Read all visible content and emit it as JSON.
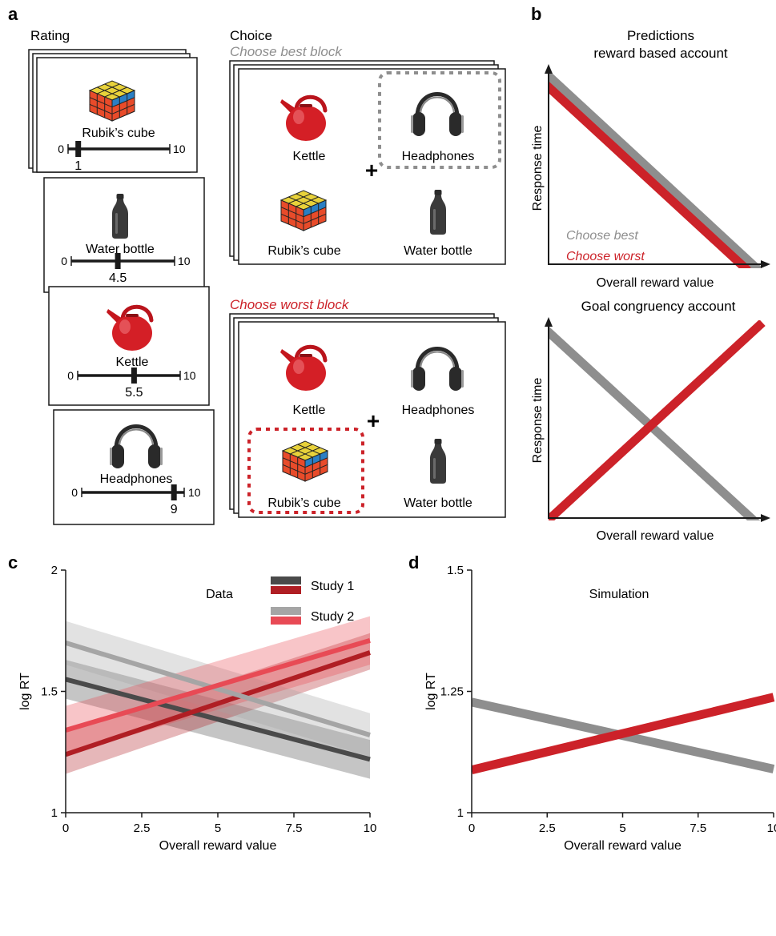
{
  "panels": {
    "a": "a",
    "b": "b",
    "c": "c",
    "d": "d"
  },
  "colors": {
    "best": "#8e8e8e",
    "worst": "#cc2229",
    "study1_best": "#4a4a4a",
    "study1_worst": "#b01e24",
    "study2_best": "#a5a5a5",
    "study2_worst": "#e84a55",
    "ink": "#1a1a1a"
  },
  "icons": {
    "rubik": "rubiks-cube-icon",
    "bottle": "water-bottle-icon",
    "kettle": "kettle-icon",
    "headphones": "headphones-icon"
  },
  "rating": {
    "title": "Rating",
    "cards": [
      {
        "item": "Rubik’s cube",
        "min": "0",
        "max": "10",
        "value": 1,
        "value_label": "1"
      },
      {
        "item": "Water bottle",
        "min": "0",
        "max": "10",
        "value": 4.5,
        "value_label": "4.5"
      },
      {
        "item": "Kettle",
        "min": "0",
        "max": "10",
        "value": 5.5,
        "value_label": "5.5"
      },
      {
        "item": "Headphones",
        "min": "0",
        "max": "10",
        "value": 9,
        "value_label": "9"
      }
    ]
  },
  "choice": {
    "title": "Choice",
    "best_block": {
      "label": "Choose best block",
      "items": [
        "Kettle",
        "Headphones",
        "Rubik’s cube",
        "Water bottle"
      ],
      "selected": "Headphones"
    },
    "worst_block": {
      "label": "Choose worst block",
      "items": [
        "Kettle",
        "Headphones",
        "Rubik’s cube",
        "Water bottle"
      ],
      "selected": "Rubik’s cube"
    },
    "fixation": "+"
  },
  "predictions": {
    "title_line1": "Predictions",
    "title_line2": "reward based account",
    "second_title": "Goal congruency account",
    "ylabel": "Response time",
    "xlabel": "Overall reward value",
    "legend_best": "Choose best",
    "legend_worst": "Choose worst"
  },
  "chart_data": [
    {
      "type": "line",
      "title": "Data",
      "xlabel": "Overall reward value",
      "ylabel": "log RT",
      "xlim": [
        0,
        10
      ],
      "ylim": [
        1,
        2
      ],
      "xticks": [
        "0",
        "2.5",
        "5",
        "7.5",
        "10"
      ],
      "yticks": [
        "1",
        "1.5",
        "2"
      ],
      "legend": {
        "position": "top-center",
        "entries": [
          "Study 1",
          "Study 2"
        ]
      },
      "series": [
        {
          "x": [
            0,
            10
          ],
          "y": [
            1.55,
            1.22
          ],
          "band_low": [
            1.47,
            1.14
          ],
          "band_high": [
            1.63,
            1.3
          ]
        },
        {
          "x": [
            0,
            10
          ],
          "y": [
            1.24,
            1.66
          ],
          "band_low": [
            1.16,
            1.59
          ],
          "band_high": [
            1.33,
            1.74
          ]
        },
        {
          "x": [
            0,
            10
          ],
          "y": [
            1.7,
            1.32
          ],
          "band_low": [
            1.61,
            1.23
          ],
          "band_high": [
            1.79,
            1.41
          ]
        },
        {
          "x": [
            0,
            10
          ],
          "y": [
            1.34,
            1.71
          ],
          "band_low": [
            1.24,
            1.61
          ],
          "band_high": [
            1.44,
            1.81
          ]
        }
      ]
    },
    {
      "type": "line",
      "title": "Simulation",
      "xlabel": "Overall reward value",
      "ylabel": "log RT",
      "xlim": [
        0,
        10
      ],
      "ylim": [
        1,
        1.5
      ],
      "xticks": [
        "0",
        "2.5",
        "5",
        "7.5",
        "10"
      ],
      "yticks": [
        "1",
        "1.25",
        "1.5"
      ],
      "series": [
        {
          "x": [
            0,
            10
          ],
          "y": [
            1.228,
            1.09
          ]
        },
        {
          "x": [
            0,
            10
          ],
          "y": [
            1.088,
            1.238
          ]
        }
      ]
    }
  ]
}
